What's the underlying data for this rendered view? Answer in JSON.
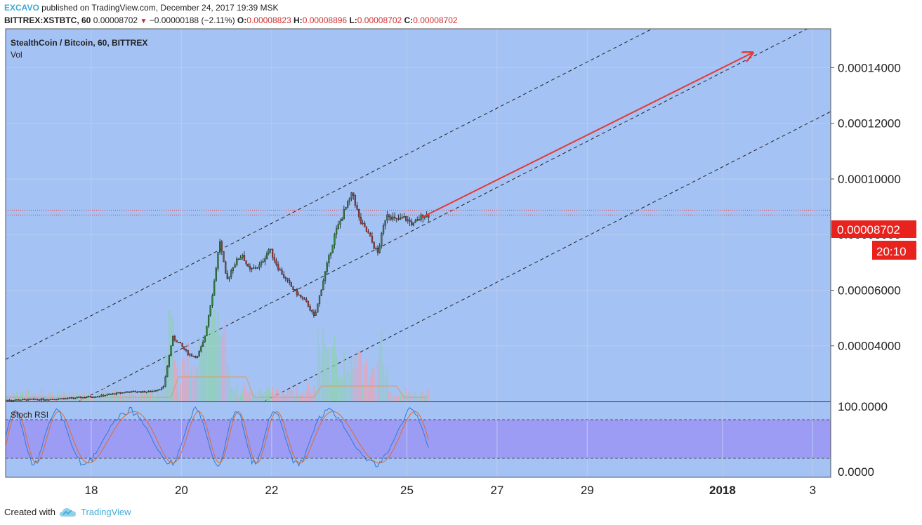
{
  "header": {
    "author": "EXCAVO",
    "published_text": "published on TradingView.com, December 24, 2017 19:39 MSK",
    "symbol_line": "BITTREX:XSTBTC, 60",
    "last": "0.00008702",
    "change": "−0.00000188 (−2.11%)",
    "open_label": "O:",
    "open": "0.00008823",
    "high_label": "H:",
    "high": "0.00008896",
    "low_label": "L:",
    "low": "0.00008702",
    "close_label": "C:",
    "close": "0.00008702"
  },
  "legend": {
    "title": "StealthCoin / Bitcoin, 60, BITTREX",
    "vol": "Vol",
    "indicator": "Stoch RSI"
  },
  "price_badge": "0.00008702",
  "countdown_badge": "20:10",
  "footer": {
    "created_with": "Created with",
    "brand": "TradingView"
  },
  "colors": {
    "background": "#a4c2f4",
    "up": "#2e8b3a",
    "down": "#b03a3a",
    "arrow": "#e53935",
    "rsi_band": "#9d9cf4",
    "k_line": "#2b7bd8",
    "d_line": "#e06a2c",
    "price_line": "#e53935"
  },
  "chart_data": {
    "type": "candlestick",
    "symbol": "BITTREX:XSTBTC",
    "interval": "60",
    "y_ticks": [
      "0.00004000",
      "0.00006000",
      "0.00008000",
      "0.00010000",
      "0.00012000",
      "0.00014000"
    ],
    "y_tick_values": [
      4e-05,
      6e-05,
      8e-05,
      0.0001,
      0.00012,
      0.00014
    ],
    "x_ticks": [
      "18",
      "20",
      "22",
      "25",
      "27",
      "29",
      "2018",
      "3"
    ],
    "x_tick_values": [
      18,
      20,
      22,
      25,
      27,
      29,
      32,
      34
    ],
    "xlim": [
      16.1,
      34.4
    ],
    "ylim": [
      2e-05,
      0.000154
    ],
    "last_price": 8.702e-05,
    "price_series": [
      {
        "d": 16.1,
        "p": 2.05e-05
      },
      {
        "d": 17.0,
        "p": 2.08e-05
      },
      {
        "d": 17.6,
        "p": 2.12e-05
      },
      {
        "d": 18.2,
        "p": 2.2e-05
      },
      {
        "d": 18.8,
        "p": 2.35e-05
      },
      {
        "d": 19.3,
        "p": 2.35e-05
      },
      {
        "d": 19.6,
        "p": 2.5e-05
      },
      {
        "d": 19.8,
        "p": 4.3e-05
      },
      {
        "d": 19.95,
        "p": 4.1e-05
      },
      {
        "d": 20.15,
        "p": 3.7e-05
      },
      {
        "d": 20.35,
        "p": 3.6e-05
      },
      {
        "d": 20.5,
        "p": 4.2e-05
      },
      {
        "d": 20.7,
        "p": 6e-05
      },
      {
        "d": 20.85,
        "p": 7.8e-05
      },
      {
        "d": 21.0,
        "p": 6.3e-05
      },
      {
        "d": 21.15,
        "p": 6.9e-05
      },
      {
        "d": 21.35,
        "p": 7.3e-05
      },
      {
        "d": 21.5,
        "p": 6.7e-05
      },
      {
        "d": 21.75,
        "p": 6.9e-05
      },
      {
        "d": 21.95,
        "p": 7.5e-05
      },
      {
        "d": 22.15,
        "p": 6.8e-05
      },
      {
        "d": 22.35,
        "p": 6.3e-05
      },
      {
        "d": 22.55,
        "p": 5.9e-05
      },
      {
        "d": 22.8,
        "p": 5.5e-05
      },
      {
        "d": 22.95,
        "p": 5e-05
      },
      {
        "d": 23.15,
        "p": 6.4e-05
      },
      {
        "d": 23.4,
        "p": 8e-05
      },
      {
        "d": 23.6,
        "p": 8.8e-05
      },
      {
        "d": 23.8,
        "p": 9.5e-05
      },
      {
        "d": 23.95,
        "p": 8.5e-05
      },
      {
        "d": 24.15,
        "p": 8e-05
      },
      {
        "d": 24.35,
        "p": 7.3e-05
      },
      {
        "d": 24.55,
        "p": 8.8e-05
      },
      {
        "d": 24.75,
        "p": 8.5e-05
      },
      {
        "d": 24.95,
        "p": 8.6e-05
      },
      {
        "d": 25.15,
        "p": 8.35e-05
      },
      {
        "d": 25.35,
        "p": 8.7e-05
      },
      {
        "d": 25.48,
        "p": 8.702e-05
      }
    ],
    "stoch_rsi_levels": [
      "100.0000",
      "0.0000"
    ],
    "stoch_rsi_band": [
      20,
      80
    ]
  }
}
